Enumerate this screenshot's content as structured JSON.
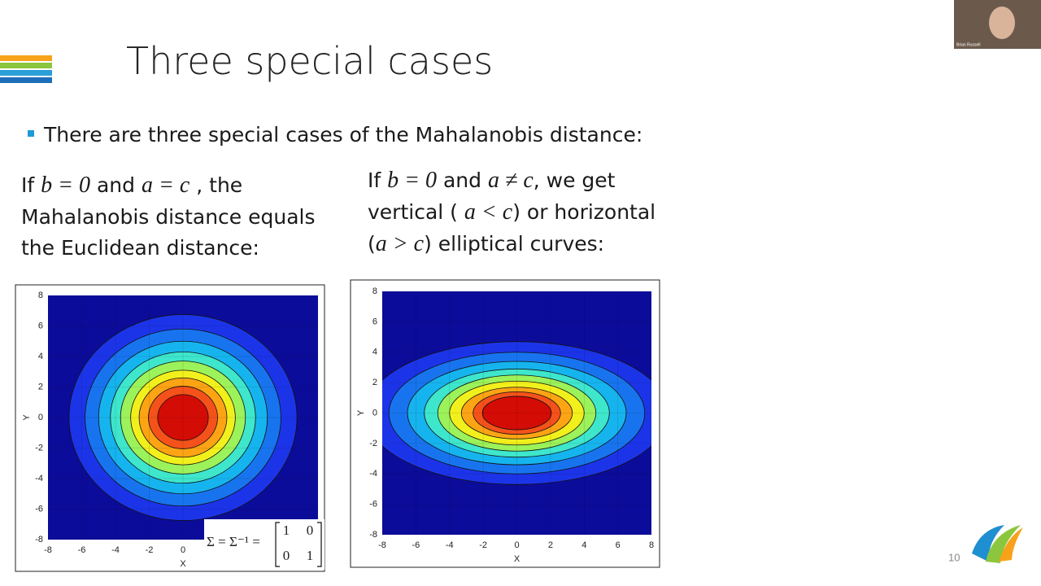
{
  "slide": {
    "title": "Three special cases",
    "bullet": "There are three special cases of the Mahalanobis distance:",
    "left_text": [
      [
        "If ",
        "b = 0",
        " and ",
        "a = c",
        " , the"
      ],
      [
        "Mahalanobis distance equals"
      ],
      [
        "the Euclidean distance:"
      ]
    ],
    "right_text": [
      [
        "If ",
        "b = 0",
        " and ",
        "a ≠ c",
        ", we get"
      ],
      [
        "vertical ( ",
        "a < c",
        ") or horizontal"
      ],
      [
        "(",
        "a > c",
        ") elliptical curves:"
      ]
    ],
    "page_number": "10"
  },
  "webcam": {
    "name": "Brian Russell"
  },
  "chart_data": [
    {
      "type": "contour",
      "xlabel": "X",
      "ylabel": "Y",
      "xlim": [
        -8,
        8
      ],
      "ylim": [
        -8,
        8
      ],
      "xticks": [
        -8,
        -6,
        -4,
        -2,
        0
      ],
      "yticks": [
        -8,
        -6,
        -4,
        -2,
        0,
        2,
        4,
        6,
        8
      ],
      "grid": true,
      "center": [
        0,
        0
      ],
      "background_color": "#0c0c9a",
      "contours": [
        {
          "rx": 6.75,
          "ry": 6.75,
          "color": "#1c34e8"
        },
        {
          "rx": 5.8,
          "ry": 5.8,
          "color": "#1874ee"
        },
        {
          "rx": 5.0,
          "ry": 5.0,
          "color": "#16b4ee"
        },
        {
          "rx": 4.3,
          "ry": 4.3,
          "color": "#3ee6cc"
        },
        {
          "rx": 3.7,
          "ry": 3.7,
          "color": "#9cf25a"
        },
        {
          "rx": 3.1,
          "ry": 3.1,
          "color": "#f2f01c"
        },
        {
          "rx": 2.6,
          "ry": 2.6,
          "color": "#fca414"
        },
        {
          "rx": 2.05,
          "ry": 2.05,
          "color": "#f4521a"
        },
        {
          "rx": 1.5,
          "ry": 1.5,
          "color": "#d40c06"
        }
      ],
      "annotation": {
        "lhs": "Σ = Σ⁻¹ =",
        "matrix": [
          [
            1,
            0
          ],
          [
            0,
            1
          ]
        ]
      }
    },
    {
      "type": "contour",
      "xlabel": "X",
      "ylabel": "Y",
      "xlim": [
        -8,
        8
      ],
      "ylim": [
        -8,
        8
      ],
      "xticks": [
        -8,
        -6,
        -4,
        -2,
        0,
        2,
        4,
        6,
        8
      ],
      "yticks": [
        -8,
        -6,
        -4,
        -2,
        0,
        2,
        4,
        6,
        8
      ],
      "grid": true,
      "center": [
        0,
        0
      ],
      "background_color": "#0c0c9a",
      "contours": [
        {
          "rx": 9.0,
          "ry": 4.7,
          "color": "#1c34e8"
        },
        {
          "rx": 7.6,
          "ry": 4.0,
          "color": "#1874ee"
        },
        {
          "rx": 6.5,
          "ry": 3.4,
          "color": "#16b4ee"
        },
        {
          "rx": 5.5,
          "ry": 2.9,
          "color": "#3ee6cc"
        },
        {
          "rx": 4.7,
          "ry": 2.5,
          "color": "#9cf25a"
        },
        {
          "rx": 4.0,
          "ry": 2.1,
          "color": "#f2f01c"
        },
        {
          "rx": 3.3,
          "ry": 1.7,
          "color": "#fca414"
        },
        {
          "rx": 2.6,
          "ry": 1.4,
          "color": "#f4521a"
        },
        {
          "rx": 2.05,
          "ry": 1.1,
          "color": "#d40c06"
        }
      ]
    }
  ]
}
